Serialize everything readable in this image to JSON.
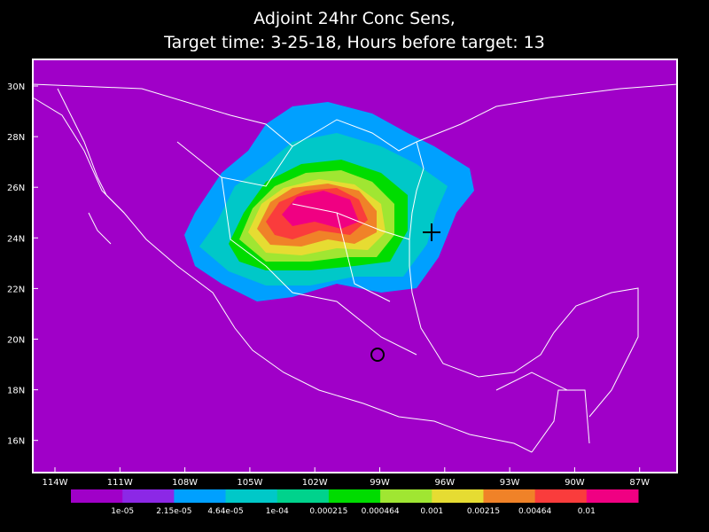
{
  "header": {
    "title_line1": "Adjoint 24hr Conc Sens,",
    "title_line2": "Target time: 3-25-18, Hours before target: 13"
  },
  "map": {
    "lat_labels": [
      "30N",
      "28N",
      "26N",
      "24N",
      "22N",
      "20N",
      "18N",
      "16N"
    ],
    "lon_labels": [
      "114W",
      "111W",
      "108W",
      "105W",
      "102W",
      "99W",
      "96W",
      "93W",
      "90W",
      "87W"
    ]
  },
  "colorbar": {
    "colors": [
      "#a000c8",
      "#8c28e6",
      "#00a0ff",
      "#00c8c8",
      "#00d28c",
      "#00dc00",
      "#a0e632",
      "#e6dc32",
      "#f08228",
      "#fa3c3c",
      "#f00082"
    ],
    "labels": [
      "1e-05",
      "2.15e-05",
      "4.64e-05",
      "1e-04",
      "0.000215",
      "0.000464",
      "0.001",
      "0.00215",
      "0.00464",
      "0.01"
    ]
  }
}
